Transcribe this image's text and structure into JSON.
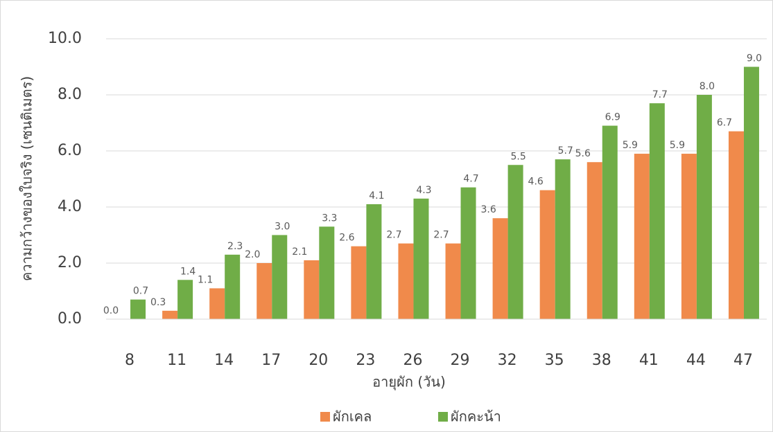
{
  "chart_data": {
    "type": "bar",
    "categories": [
      "8",
      "11",
      "14",
      "17",
      "20",
      "23",
      "26",
      "29",
      "32",
      "35",
      "38",
      "41",
      "44",
      "47"
    ],
    "series": [
      {
        "name": "ผักเคล",
        "color": "#f08a4b",
        "values": [
          0.0,
          0.3,
          1.1,
          2.0,
          2.1,
          2.6,
          2.7,
          2.7,
          3.6,
          4.6,
          5.6,
          5.9,
          5.9,
          6.7
        ],
        "value_labels": [
          "0.0",
          "0.3",
          "1.1",
          "2.0",
          "2.1",
          "2.6",
          "2.7",
          "2.7",
          "3.6",
          "4.6",
          "5.6",
          "5.9",
          "5.9",
          "6.7"
        ]
      },
      {
        "name": "ผักคะน้า",
        "color": "#70ad47",
        "values": [
          0.7,
          1.4,
          2.3,
          3.0,
          3.3,
          4.1,
          4.3,
          4.7,
          5.5,
          5.7,
          6.9,
          7.7,
          8.0,
          9.0
        ],
        "value_labels": [
          "0.7",
          "1.4",
          "2.3",
          "3.0",
          "3.3",
          "4.1",
          "4.3",
          "4.7",
          "5.5",
          "5.7",
          "6.9",
          "7.7",
          "8.0",
          "9.0"
        ]
      }
    ],
    "xlabel": "อายุผัก (วัน)",
    "ylabel": "ความกว้างของใบจริง (เซนติเมตร)",
    "ylim": [
      0,
      10
    ],
    "yticks": [
      {
        "value": 0,
        "label": "0.0"
      },
      {
        "value": 2,
        "label": "2.0"
      },
      {
        "value": 4,
        "label": "4.0"
      },
      {
        "value": 6,
        "label": "6.0"
      },
      {
        "value": 8,
        "label": "8.0"
      },
      {
        "value": 10,
        "label": "10.0"
      }
    ],
    "grid": true,
    "legend": "bottom"
  }
}
